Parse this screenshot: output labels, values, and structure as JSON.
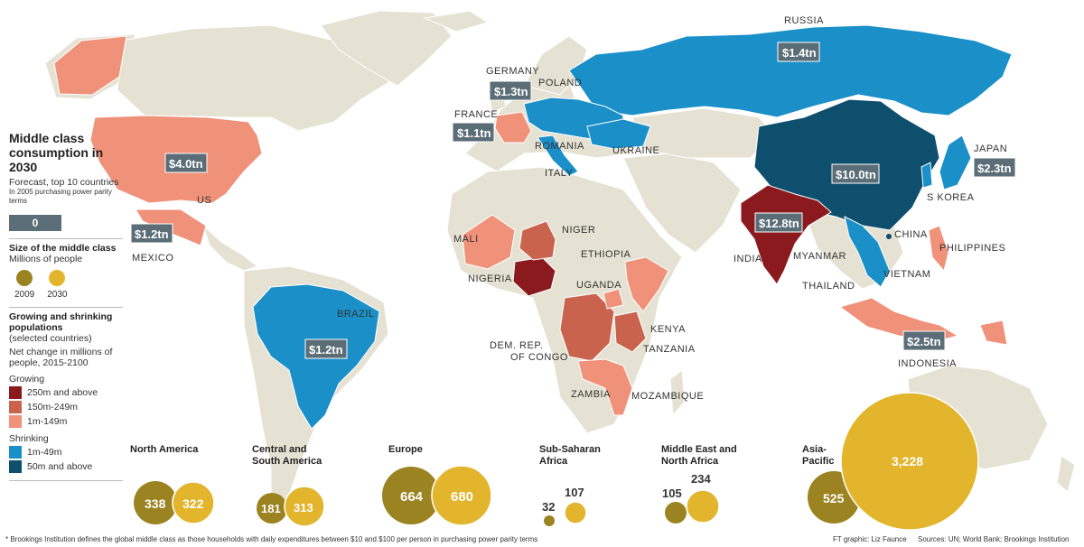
{
  "legend": {
    "title": "Middle class consumption in 2030",
    "subtitle": "Forecast, top 10 countries",
    "note": "In 2005 purchasing power parity terms",
    "zero_badge": "0",
    "size_title": "Size of the middle class",
    "size_sub": "Millions of people",
    "year_a": "2009",
    "year_b": "2030",
    "growth_title": "Growing and shrinking populations",
    "growth_paren": "(selected countries)",
    "growth_sub": "Net change in millions of people, 2015-2100",
    "growing": "Growing",
    "g1": "250m and above",
    "g2": "150m-249m",
    "g3": "1m-149m",
    "shrinking": "Shrinking",
    "s1": "1m-49m",
    "s2": "50m and above"
  },
  "colors": {
    "land": "#e6e2d3",
    "grow_high": "#8b1a1f",
    "grow_mid": "#c9634e",
    "grow_low": "#f0917a",
    "shrink_low": "#1a8fc8",
    "shrink_high": "#0e4f6e",
    "gold_2009": "#9c8321",
    "gold_2030": "#e2b52d"
  },
  "countries": {
    "russia": "RUSSIA",
    "germany": "GERMANY",
    "poland": "POLAND",
    "france": "FRANCE",
    "romania": "ROMANIA",
    "ukraine": "UKRAINE",
    "italy": "ITALY",
    "japan": "JAPAN",
    "skorea": "S KOREA",
    "china": "CHINA",
    "india": "INDIA",
    "myanmar": "MYANMAR",
    "philippines": "PHILIPPINES",
    "vietnam": "VIETNAM",
    "thailand": "THAILAND",
    "indonesia": "INDONESIA",
    "us": "US",
    "mexico": "MEXICO",
    "brazil": "BRAZIL",
    "mali": "MALI",
    "niger": "NIGER",
    "ethiopia": "ETHIOPIA",
    "nigeria": "NIGERIA",
    "uganda": "UGANDA",
    "kenya": "KENYA",
    "drc": "DEM. REP.",
    "drc2": "OF CONGO",
    "tanzania": "TANZANIA",
    "zambia": "ZAMBIA",
    "mozambique": "MOZAMBIQUE"
  },
  "badges": {
    "russia": "$1.4tn",
    "germany": "$1.3tn",
    "france": "$1.1tn",
    "us": "$4.0tn",
    "mexico": "$1.2tn",
    "brazil": "$1.2tn",
    "china": "$10.0tn",
    "india": "$12.8tn",
    "japan": "$2.3tn",
    "indonesia": "$2.5tn"
  },
  "regions": [
    {
      "name": "North America",
      "v2009": "338",
      "v2030": "322"
    },
    {
      "name": "Central and South America",
      "v2009": "181",
      "v2030": "313"
    },
    {
      "name": "Europe",
      "v2009": "664",
      "v2030": "680"
    },
    {
      "name": "Sub-Saharan Africa",
      "v2009": "32",
      "v2030": "107"
    },
    {
      "name": "Middle East and North Africa",
      "v2009": "105",
      "v2030": "234"
    },
    {
      "name": "Asia-Pacific",
      "v2009": "525",
      "v2030": "3,228"
    }
  ],
  "footnote": "* Brookings Institution defines the global middle class as those households with daily expenditures between $10 and $100 per person in purchasing power parity terms",
  "credit_graphic": "FT graphic: Liz Faunce",
  "credit_sources": "Sources: UN; World Bank; Brookings Institution"
}
